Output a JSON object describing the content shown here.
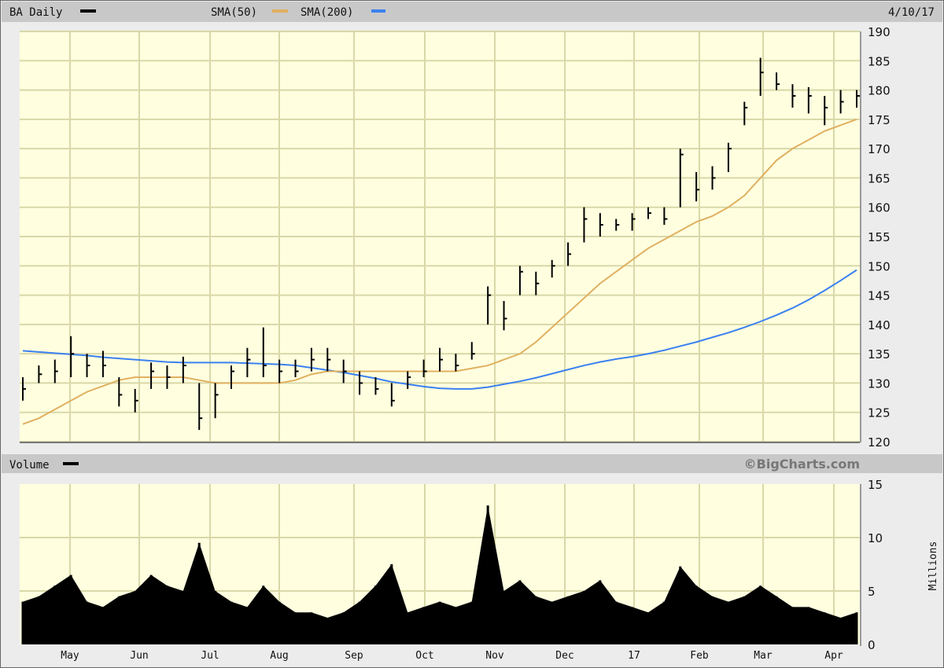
{
  "header": {
    "ticker_label": "BA Daily",
    "sma50_label": "SMA(50)",
    "sma200_label": "SMA(200)",
    "date": "4/10/17"
  },
  "volume_header": {
    "label": "Volume",
    "credit": "©BigCharts.com"
  },
  "colors": {
    "price": "#000000",
    "sma50": "#e0b060",
    "sma200": "#3a80f0",
    "background": "#ffffe0",
    "grid": "#d8d8a8",
    "volume": "#000000"
  },
  "chart_data": [
    {
      "type": "ohlc",
      "title": "BA Daily",
      "ylim": [
        120,
        190
      ],
      "yticks": [
        120,
        125,
        130,
        135,
        140,
        145,
        150,
        155,
        160,
        165,
        170,
        175,
        180,
        185,
        190
      ],
      "xticks": [
        "May",
        "Jun",
        "Jul",
        "Aug",
        "Sep",
        "Oct",
        "Nov",
        "Dec",
        "17",
        "Feb",
        "Mar",
        "Apr"
      ],
      "grid": true,
      "legend": "top",
      "series": [
        {
          "name": "BA Daily",
          "high": [
            131,
            133,
            134,
            138,
            135,
            135.5,
            131,
            129,
            133.5,
            133,
            134.5,
            130,
            130,
            133,
            136,
            139.5,
            134,
            134,
            136,
            136,
            134,
            132,
            131,
            130,
            132,
            134,
            136,
            135,
            137,
            146.5,
            144,
            150,
            149,
            151,
            154,
            160,
            159,
            158,
            159,
            160,
            160,
            170,
            166,
            167,
            171,
            178,
            185.5,
            183,
            181,
            180.5,
            179,
            180,
            180
          ],
          "low": [
            127,
            130,
            130,
            131,
            131,
            131,
            126,
            125,
            129,
            129,
            130,
            122,
            124,
            129,
            131,
            131,
            130,
            131,
            132,
            132,
            130,
            128,
            128,
            126,
            129,
            131,
            132,
            132,
            134,
            140,
            139,
            145,
            145,
            148,
            150,
            154,
            155,
            156,
            156,
            158,
            157,
            160,
            161,
            163,
            166,
            174,
            179,
            180,
            177,
            176,
            174,
            176,
            177
          ],
          "close": [
            129,
            131.5,
            132,
            135,
            133,
            133,
            128,
            127,
            132,
            131,
            133,
            124,
            128,
            132,
            134,
            133,
            132,
            132,
            134,
            134,
            132,
            130,
            129,
            127,
            131,
            132,
            134,
            133,
            135,
            145,
            141,
            149,
            147,
            150,
            152,
            158,
            157,
            157,
            158,
            159,
            158,
            169,
            163,
            165,
            170,
            177,
            183,
            181,
            179,
            179,
            177,
            178,
            179
          ]
        },
        {
          "name": "SMA(50)",
          "values": [
            123,
            124,
            125.5,
            127,
            128.5,
            129.5,
            130.5,
            131,
            131,
            131,
            131,
            130.5,
            130,
            130,
            130,
            130,
            130,
            130.5,
            131.5,
            132,
            132,
            132,
            132,
            132,
            132,
            132,
            132,
            132,
            132.5,
            133,
            134,
            135,
            137,
            139.5,
            142,
            144.5,
            147,
            149,
            151,
            153,
            154.5,
            156,
            157.5,
            158.5,
            160,
            162,
            165,
            168,
            170,
            171.5,
            173,
            174,
            175
          ]
        },
        {
          "name": "SMA(200)",
          "values": [
            135.5,
            135.3,
            135.1,
            134.9,
            134.7,
            134.4,
            134.2,
            134,
            133.8,
            133.6,
            133.5,
            133.5,
            133.5,
            133.5,
            133.4,
            133.3,
            133.2,
            133,
            132.6,
            132.2,
            131.8,
            131.3,
            130.8,
            130.2,
            129.8,
            129.4,
            129.1,
            129,
            129,
            129.3,
            129.8,
            130.3,
            130.9,
            131.6,
            132.3,
            133,
            133.6,
            134.1,
            134.5,
            135,
            135.6,
            136.3,
            137,
            137.8,
            138.6,
            139.5,
            140.5,
            141.6,
            142.8,
            144.2,
            145.8,
            147.5,
            149.3
          ]
        }
      ]
    },
    {
      "type": "area",
      "title": "Volume",
      "ylabel": "Millions",
      "ylim": [
        0,
        15
      ],
      "yticks": [
        0,
        5,
        10,
        15
      ],
      "grid": true,
      "values": [
        4,
        4.5,
        5.5,
        6.5,
        4,
        3.5,
        4.5,
        5,
        6.5,
        5.5,
        5,
        9.5,
        5,
        4,
        3.5,
        5.5,
        4,
        3,
        3,
        2.5,
        3,
        4,
        5.5,
        7.5,
        3,
        3.5,
        4,
        3.5,
        4,
        13,
        5,
        6,
        4.5,
        4,
        4.5,
        5,
        6,
        4,
        3.5,
        3,
        4,
        7.3,
        5.5,
        4.5,
        4,
        4.5,
        5.5,
        4.5,
        3.5,
        3.5,
        3,
        2.5,
        3
      ]
    }
  ]
}
